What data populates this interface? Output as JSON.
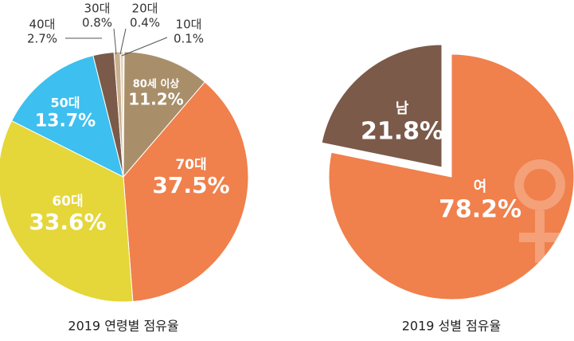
{
  "chart_data": [
    {
      "type": "pie",
      "title": "2019 연령별 점유율",
      "categories": [
        "10대",
        "80세 이상",
        "70대",
        "60대",
        "50대",
        "40대",
        "30대",
        "20대"
      ],
      "values": [
        0.1,
        11.2,
        37.5,
        33.6,
        13.7,
        2.7,
        0.8,
        0.4
      ],
      "value_labels": [
        "0.1%",
        "11.2%",
        "37.5%",
        "33.6%",
        "13.7%",
        "2.7%",
        "0.8%",
        "0.4%"
      ],
      "colors": [
        "#d9d2c6",
        "#a88f6a",
        "#f0804c",
        "#e5d63a",
        "#3dbfef",
        "#7b5a4a",
        "#c9b08f",
        "#e3d3bc"
      ]
    },
    {
      "type": "pie",
      "title": "2019 성별 점유율",
      "categories": [
        "여",
        "남"
      ],
      "values": [
        78.2,
        21.8
      ],
      "value_labels": [
        "78.2%",
        "21.8%"
      ],
      "colors": [
        "#f0804c",
        "#7b5a4a"
      ]
    }
  ]
}
